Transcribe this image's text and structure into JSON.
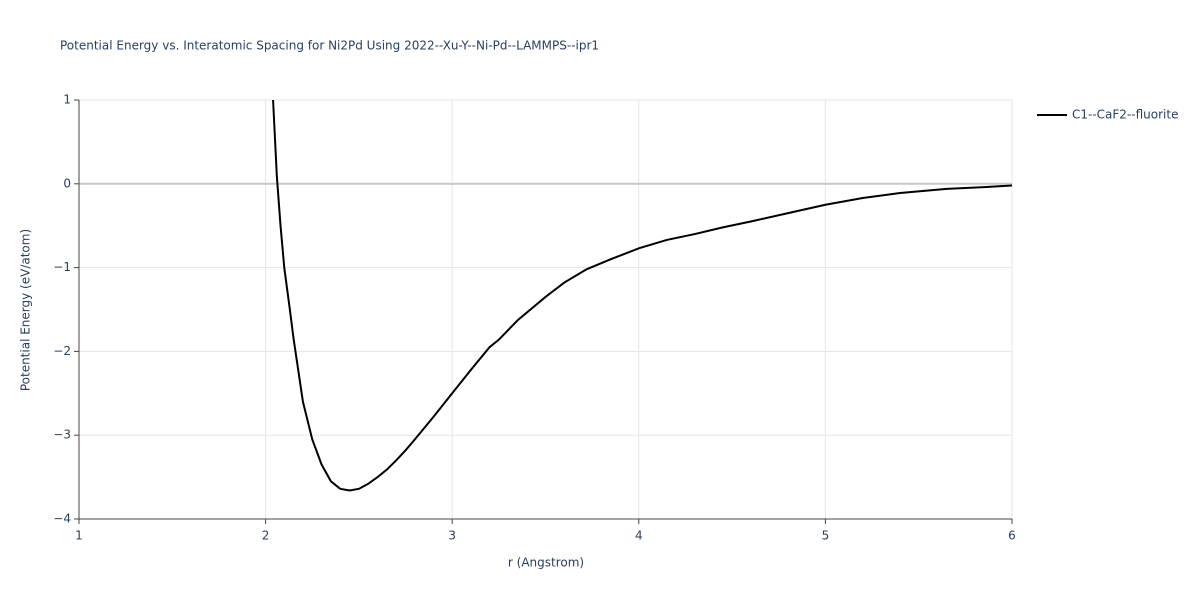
{
  "chart_data": {
    "type": "line",
    "title": "Potential Energy vs. Interatomic Spacing for Ni2Pd Using 2022--Xu-Y--Ni-Pd--LAMMPS--ipr1",
    "x_label": "r (Angstrom)",
    "y_label": "Potential Energy (eV/atom)",
    "xlim": [
      1,
      6
    ],
    "ylim": [
      -4,
      1
    ],
    "xticks": [
      1,
      2,
      3,
      4,
      5,
      6
    ],
    "yticks": [
      1,
      0,
      {
        "value": -1,
        "label": "−1"
      },
      {
        "value": -2,
        "label": "−2"
      },
      {
        "value": -3,
        "label": "−3"
      },
      {
        "value": -4,
        "label": "−4"
      }
    ],
    "grid": true,
    "legend": "right",
    "x": [
      2.04,
      2.06,
      2.08,
      2.1,
      2.13,
      2.15,
      2.18,
      2.2,
      2.25,
      2.3,
      2.35,
      2.4,
      2.45,
      2.5,
      2.55,
      2.6,
      2.65,
      2.7,
      2.75,
      2.8,
      2.9,
      3.0,
      3.1,
      3.2,
      3.25,
      3.35,
      3.5,
      3.6,
      3.72,
      3.85,
      4.0,
      4.15,
      4.3,
      4.45,
      4.6,
      4.8,
      5.0,
      5.2,
      5.4,
      5.65,
      5.85,
      6.0
    ],
    "series": [
      {
        "name": "C1--CaF2--fluorite",
        "color": "#000000",
        "values": [
          1,
          0.1,
          -0.5,
          -1.0,
          -1.5,
          -1.85,
          -2.3,
          -2.6,
          -3.05,
          -3.35,
          -3.55,
          -3.64,
          -3.66,
          -3.64,
          -3.58,
          -3.5,
          -3.41,
          -3.3,
          -3.18,
          -3.05,
          -2.78,
          -2.5,
          -2.22,
          -1.95,
          -1.86,
          -1.63,
          -1.35,
          -1.18,
          -1.02,
          -0.9,
          -0.77,
          -0.67,
          -0.6,
          -0.52,
          -0.45,
          -0.35,
          -0.25,
          -0.17,
          -0.11,
          -0.06,
          -0.04,
          -0.02
        ]
      }
    ]
  }
}
